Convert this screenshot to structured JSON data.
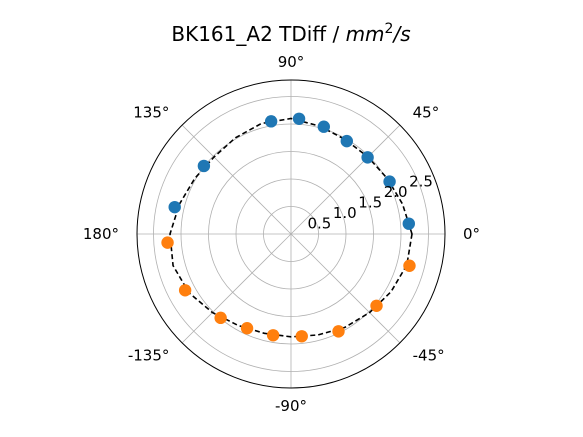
{
  "chart_data": {
    "type": "scatter",
    "projection": "polar",
    "title": {
      "prefix": "BK161_A2 TDiff / ",
      "unit_base": "mm",
      "unit_exponent": "2",
      "unit_suffix": "/s"
    },
    "theta_tick_labels": [
      {
        "angle": 0,
        "label": "0°"
      },
      {
        "angle": 45,
        "label": "45°"
      },
      {
        "angle": 90,
        "label": "90°"
      },
      {
        "angle": 135,
        "label": "135°"
      },
      {
        "angle": 180,
        "label": "180°"
      },
      {
        "angle": -135,
        "label": "-135°"
      },
      {
        "angle": -90,
        "label": "-90°"
      },
      {
        "angle": -45,
        "label": "-45°"
      }
    ],
    "radial_tick_labels": [
      {
        "r": 0.5,
        "label": "0.5"
      },
      {
        "r": 1.0,
        "label": "1.0"
      },
      {
        "r": 1.5,
        "label": "1.5"
      },
      {
        "r": 2.0,
        "label": "2.0"
      },
      {
        "r": 2.5,
        "label": "2.5"
      }
    ],
    "r_range": [
      0,
      2.8
    ],
    "grid": true,
    "series": [
      {
        "color": "#1f77b4",
        "points": [
          {
            "theta": 5,
            "r": 2.15
          },
          {
            "theta": 28,
            "r": 2.03
          },
          {
            "theta": 45,
            "r": 1.97
          },
          {
            "theta": 59,
            "r": 1.97
          },
          {
            "theta": 73,
            "r": 2.04
          },
          {
            "theta": 86,
            "r": 2.1
          },
          {
            "theta": 100,
            "r": 2.08
          },
          {
            "theta": 142,
            "r": 2.01
          },
          {
            "theta": 167,
            "r": 2.17
          }
        ]
      },
      {
        "color": "#ff7f0e",
        "points": [
          {
            "theta": 184,
            "r": 2.25
          },
          {
            "theta": 208,
            "r": 2.18
          },
          {
            "theta": 230,
            "r": 1.99
          },
          {
            "theta": 245,
            "r": 1.89
          },
          {
            "theta": 260,
            "r": 1.87
          },
          {
            "theta": 276,
            "r": 1.87
          },
          {
            "theta": 296,
            "r": 1.97
          },
          {
            "theta": 320,
            "r": 2.03
          },
          {
            "theta": 345,
            "r": 2.23
          }
        ]
      }
    ],
    "fit_curve": {
      "color": "#000000",
      "style": "dashed",
      "theta": [
        0,
        15,
        30,
        45,
        60,
        75,
        90,
        105,
        120,
        135,
        150,
        165,
        180,
        195,
        210,
        225,
        240,
        255,
        270,
        285,
        300,
        315,
        330,
        345,
        360
      ],
      "r": [
        2.2,
        2.1,
        2.02,
        1.98,
        1.98,
        2.03,
        2.1,
        2.08,
        2.02,
        1.98,
        2.02,
        2.1,
        2.2,
        2.22,
        2.14,
        2.02,
        1.92,
        1.87,
        1.87,
        1.9,
        1.96,
        2.02,
        2.1,
        2.18,
        2.2
      ]
    }
  }
}
